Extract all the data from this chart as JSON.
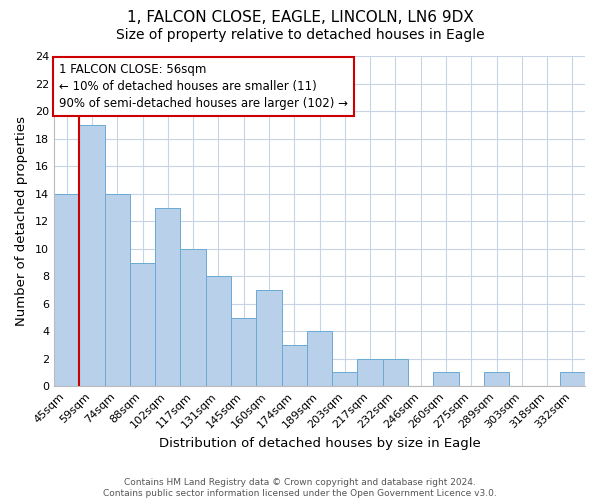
{
  "title_line1": "1, FALCON CLOSE, EAGLE, LINCOLN, LN6 9DX",
  "title_line2": "Size of property relative to detached houses in Eagle",
  "xlabel": "Distribution of detached houses by size in Eagle",
  "ylabel": "Number of detached properties",
  "categories": [
    "45sqm",
    "59sqm",
    "74sqm",
    "88sqm",
    "102sqm",
    "117sqm",
    "131sqm",
    "145sqm",
    "160sqm",
    "174sqm",
    "189sqm",
    "203sqm",
    "217sqm",
    "232sqm",
    "246sqm",
    "260sqm",
    "275sqm",
    "289sqm",
    "303sqm",
    "318sqm",
    "332sqm"
  ],
  "values": [
    14,
    19,
    14,
    9,
    13,
    10,
    8,
    5,
    7,
    3,
    4,
    1,
    2,
    2,
    0,
    1,
    0,
    1,
    0,
    0,
    1
  ],
  "bar_color": "#b8d0ea",
  "bar_edge_color": "#6aaad4",
  "property_line_index": 1,
  "annotation_title": "1 FALCON CLOSE: 56sqm",
  "annotation_line1": "← 10% of detached houses are smaller (11)",
  "annotation_line2": "90% of semi-detached houses are larger (102) →",
  "annotation_box_color": "#ffffff",
  "annotation_box_edge_color": "#cc0000",
  "property_vline_color": "#cc0000",
  "ylim": [
    0,
    24
  ],
  "yticks": [
    0,
    2,
    4,
    6,
    8,
    10,
    12,
    14,
    16,
    18,
    20,
    22,
    24
  ],
  "footer_line1": "Contains HM Land Registry data © Crown copyright and database right 2024.",
  "footer_line2": "Contains public sector information licensed under the Open Government Licence v3.0.",
  "bg_color": "#ffffff",
  "grid_color": "#c8d4e4",
  "title_fontsize": 11,
  "subtitle_fontsize": 10,
  "axis_label_fontsize": 9.5,
  "tick_fontsize": 8,
  "annotation_fontsize": 8.5,
  "footer_fontsize": 6.5
}
